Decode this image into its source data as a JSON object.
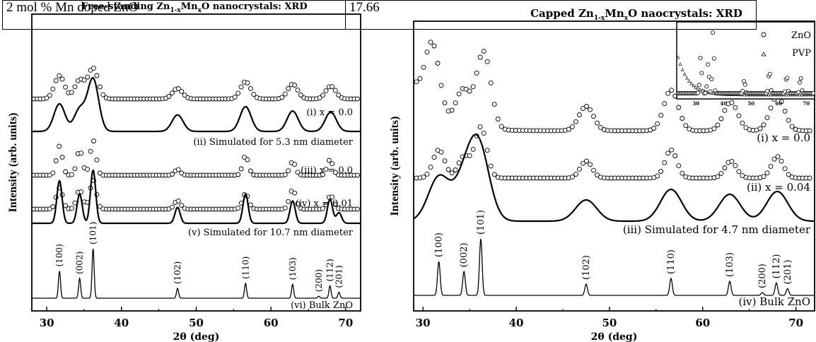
{
  "overlay_table": {
    "cells": [
      "2 mol % Mn doped ZnO",
      "17.66"
    ]
  },
  "chart_data": [
    {
      "type": "line",
      "title": "Free-standing Zn1-xMnxO nanocrystals: XRD",
      "title_parts": [
        "Free-standing Zn",
        "1-x",
        "Mn",
        "x",
        "O nanocrystals: XRD"
      ],
      "xlabel": "2θ (deg)",
      "ylabel": "Intensity (arb. units)",
      "xlim": [
        28,
        72
      ],
      "xticks": [
        30,
        40,
        50,
        60,
        70
      ],
      "grid": false,
      "series": [
        {
          "label": "(i) x = 0.0",
          "style": "circles",
          "peaks": [
            [
              31.7,
              0.47
            ],
            [
              34.4,
              0.38
            ],
            [
              36.2,
              0.62
            ],
            [
              47.5,
              0.21
            ],
            [
              56.6,
              0.35
            ],
            [
              62.9,
              0.3
            ],
            [
              68.0,
              0.26
            ]
          ]
        },
        {
          "label": "(ii) Simulated for 5.3 nm diameter",
          "style": "line",
          "peaks": [
            [
              31.7,
              0.5
            ],
            [
              34.4,
              0.4
            ],
            [
              36.2,
              0.95
            ],
            [
              47.5,
              0.3
            ],
            [
              56.6,
              0.45
            ],
            [
              62.9,
              0.37
            ],
            [
              68.0,
              0.35
            ]
          ]
        },
        {
          "label": "(iii) x = 0.0",
          "style": "circles",
          "peaks": [
            [
              31.7,
              0.75
            ],
            [
              34.4,
              0.65
            ],
            [
              36.2,
              0.9
            ],
            [
              47.5,
              0.15
            ],
            [
              56.6,
              0.5
            ],
            [
              62.9,
              0.35
            ],
            [
              67.9,
              0.4
            ]
          ]
        },
        {
          "label": "(iv) x = 0.01",
          "style": "circles",
          "peaks": [
            [
              31.7,
              0.55
            ],
            [
              34.4,
              0.5
            ],
            [
              36.2,
              0.75
            ],
            [
              47.5,
              0.22
            ],
            [
              56.6,
              0.4
            ],
            [
              62.9,
              0.5
            ],
            [
              68.0,
              0.35
            ]
          ]
        },
        {
          "label": "(v) Simulated for 10.7 nm diameter",
          "style": "line",
          "peaks": [
            [
              31.7,
              0.8
            ],
            [
              34.4,
              0.55
            ],
            [
              36.2,
              1.0
            ],
            [
              47.5,
              0.3
            ],
            [
              56.6,
              0.55
            ],
            [
              62.9,
              0.42
            ],
            [
              67.9,
              0.45
            ],
            [
              69.1,
              0.2
            ]
          ]
        },
        {
          "label": "(vi) Bulk ZnO",
          "style": "line",
          "peaks": [
            [
              31.7,
              0.55
            ],
            [
              34.4,
              0.4
            ],
            [
              36.2,
              1.0
            ],
            [
              47.5,
              0.2
            ],
            [
              56.6,
              0.3
            ],
            [
              62.9,
              0.28
            ],
            [
              66.4,
              0.04
            ],
            [
              67.9,
              0.25
            ],
            [
              69.1,
              0.12
            ]
          ]
        }
      ],
      "peak_labels": [
        {
          "x": 31.7,
          "text": "(100)"
        },
        {
          "x": 34.4,
          "text": "(002)"
        },
        {
          "x": 36.2,
          "text": "(101)"
        },
        {
          "x": 47.5,
          "text": "(102)"
        },
        {
          "x": 56.6,
          "text": "(110)"
        },
        {
          "x": 62.9,
          "text": "(103)"
        },
        {
          "x": 66.4,
          "text": "(200)"
        },
        {
          "x": 67.9,
          "text": "(112)"
        },
        {
          "x": 69.1,
          "text": "(201)"
        }
      ]
    },
    {
      "type": "line",
      "title": "Capped Zn1-xMnxO naocrystals: XRD",
      "title_parts": [
        "Capped Zn",
        "1-x",
        "Mn",
        "x",
        "O naocrystals: XRD"
      ],
      "xlabel": "2θ (deg)",
      "ylabel": "Intensity (arb. units)",
      "xlim": [
        29,
        72
      ],
      "xticks": [
        30,
        40,
        50,
        60,
        70
      ],
      "grid": false,
      "series": [
        {
          "label": "(i) x = 0.0",
          "style": "circles",
          "peaks": [
            [
              31.0,
              0.85
            ],
            [
              34.3,
              0.45
            ],
            [
              36.5,
              0.95
            ],
            [
              47.5,
              0.3
            ],
            [
              56.6,
              0.5
            ],
            [
              63.0,
              0.35
            ],
            [
              68.0,
              0.42
            ]
          ],
          "background": 0.6
        },
        {
          "label": "(ii) x = 0.04",
          "style": "circles",
          "peaks": [
            [
              31.7,
              0.5
            ],
            [
              34.4,
              0.38
            ],
            [
              36.2,
              0.9
            ],
            [
              47.5,
              0.3
            ],
            [
              56.6,
              0.5
            ],
            [
              63.0,
              0.3
            ],
            [
              68.0,
              0.38
            ]
          ]
        },
        {
          "label": "(iii) Simulated for 4.7 nm diameter",
          "style": "line",
          "peaks": [
            [
              31.7,
              0.62
            ],
            [
              34.4,
              0.5
            ],
            [
              36.0,
              1.0
            ],
            [
              47.5,
              0.3
            ],
            [
              56.6,
              0.45
            ],
            [
              62.9,
              0.38
            ],
            [
              68.0,
              0.42
            ]
          ]
        },
        {
          "label": "(iv) Bulk ZnO",
          "style": "line",
          "peaks": [
            [
              31.7,
              0.6
            ],
            [
              34.4,
              0.42
            ],
            [
              36.2,
              1.0
            ],
            [
              47.5,
              0.2
            ],
            [
              56.6,
              0.3
            ],
            [
              62.9,
              0.25
            ],
            [
              66.4,
              0.05
            ],
            [
              67.9,
              0.22
            ],
            [
              69.1,
              0.12
            ]
          ]
        }
      ],
      "peak_labels": [
        {
          "x": 31.7,
          "text": "(100)"
        },
        {
          "x": 34.4,
          "text": "(002)"
        },
        {
          "x": 36.2,
          "text": "(101)"
        },
        {
          "x": 47.5,
          "text": "(102)"
        },
        {
          "x": 56.6,
          "text": "(110)"
        },
        {
          "x": 62.9,
          "text": "(103)"
        },
        {
          "x": 66.4,
          "text": "(200)"
        },
        {
          "x": 67.9,
          "text": "(112)"
        },
        {
          "x": 69.1,
          "text": "(201)"
        }
      ],
      "inset": {
        "legend": [
          "ZnO",
          "PVP"
        ],
        "xticks": [
          30,
          40,
          50,
          60,
          70
        ],
        "xlim": [
          23,
          73
        ],
        "series": [
          {
            "name": "ZnO",
            "style": "circles",
            "peaks": [
              [
                31.7,
                0.55
              ],
              [
                34.4,
                0.45
              ],
              [
                36.2,
                0.95
              ],
              [
                47.5,
                0.2
              ],
              [
                56.6,
                0.35
              ],
              [
                62.9,
                0.28
              ],
              [
                67.9,
                0.25
              ]
            ]
          },
          {
            "name": "PVP",
            "style": "triangles",
            "decay": true
          }
        ]
      }
    }
  ]
}
